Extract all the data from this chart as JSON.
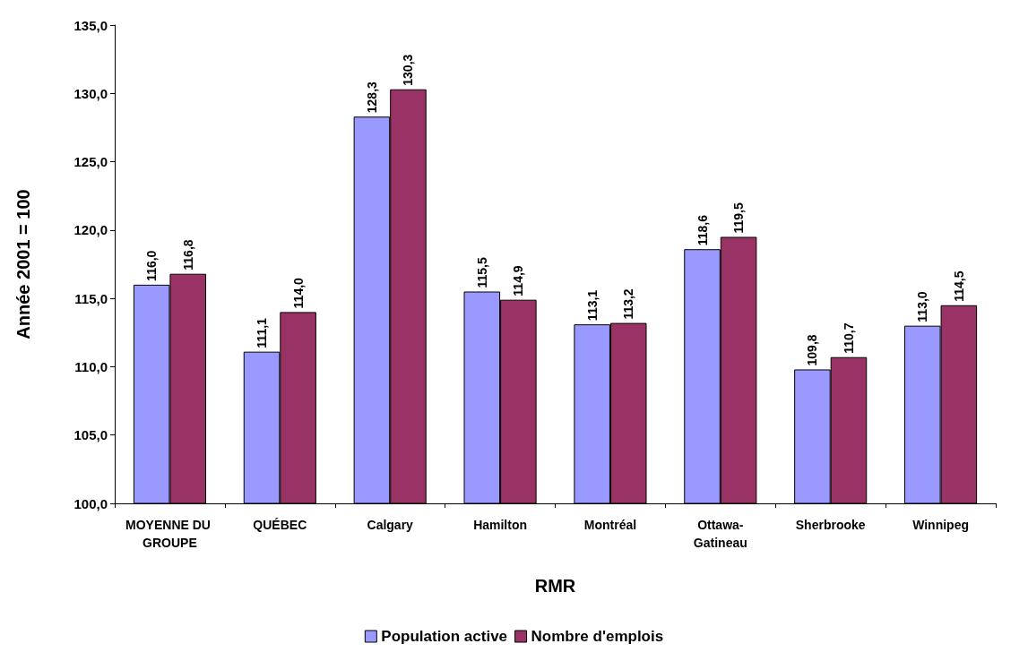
{
  "chart_data": {
    "type": "bar",
    "xlabel": "RMR",
    "ylabel": "Année 2001 = 100",
    "categories": [
      "MOYENNE DU GROUPE",
      "QUÉBEC",
      "Calgary",
      "Hamilton",
      "Montréal",
      "Ottawa-Gatineau",
      "Sherbrooke",
      "Winnipeg"
    ],
    "series": [
      {
        "name": "Population active",
        "color": "#9999ff",
        "values": [
          116.0,
          111.1,
          128.3,
          115.5,
          113.1,
          118.6,
          109.8,
          113.0
        ],
        "value_labels": [
          "116,0",
          "111,1",
          "128,3",
          "115,5",
          "113,1",
          "118,6",
          "109,8",
          "113,0"
        ]
      },
      {
        "name": "Nombre d'emplois",
        "color": "#993366",
        "values": [
          116.8,
          114.0,
          130.3,
          114.9,
          113.2,
          119.5,
          110.7,
          114.5
        ],
        "value_labels": [
          "116,8",
          "114,0",
          "130,3",
          "114,9",
          "113,2",
          "119,5",
          "110,7",
          "114,5"
        ]
      }
    ],
    "ylim": [
      100,
      135
    ],
    "yticks": [
      {
        "value": 100,
        "label": "100,0"
      },
      {
        "value": 105,
        "label": "105,0"
      },
      {
        "value": 110,
        "label": "110,0"
      },
      {
        "value": 115,
        "label": "115,0"
      },
      {
        "value": 120,
        "label": "120,0"
      },
      {
        "value": 125,
        "label": "125,0"
      },
      {
        "value": 130,
        "label": "130,0"
      },
      {
        "value": 135,
        "label": "135,0"
      }
    ],
    "grid": false,
    "legend": "bottom"
  }
}
